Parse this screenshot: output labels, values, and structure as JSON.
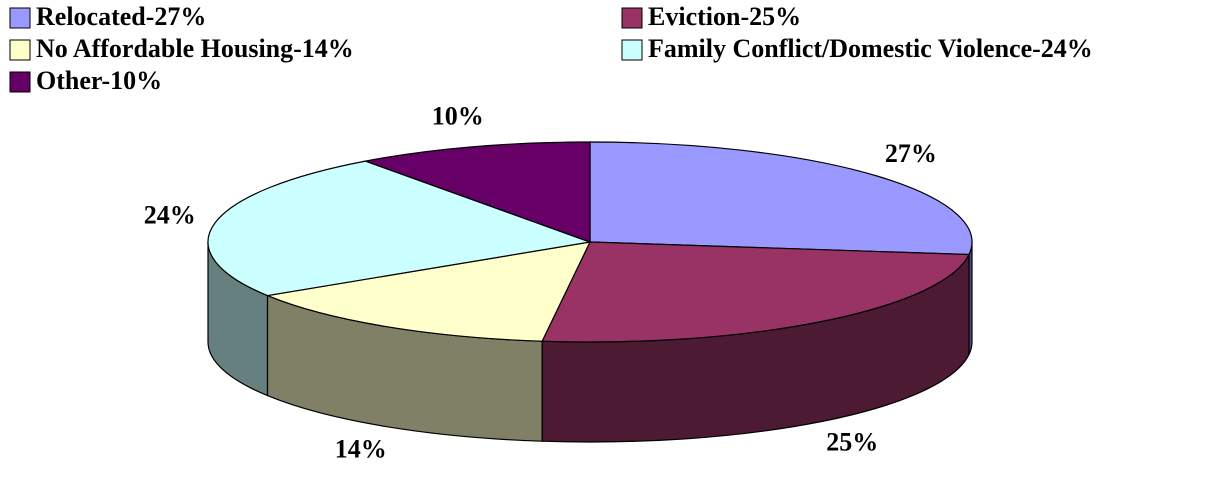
{
  "chart_data": {
    "type": "pie",
    "categories": [
      "Relocated-27%",
      "Eviction-25%",
      "No Affordable Housing-14%",
      "Family Conflict/Domestic Violence-24%",
      "Other-10%"
    ],
    "values": [
      27,
      25,
      14,
      24,
      10
    ],
    "value_labels": [
      "27%",
      "25%",
      "14%",
      "24%",
      "10%"
    ],
    "colors": [
      "#9999ff",
      "#993366",
      "#ffffcc",
      "#ccffff",
      "#660066"
    ],
    "legend": "top"
  }
}
